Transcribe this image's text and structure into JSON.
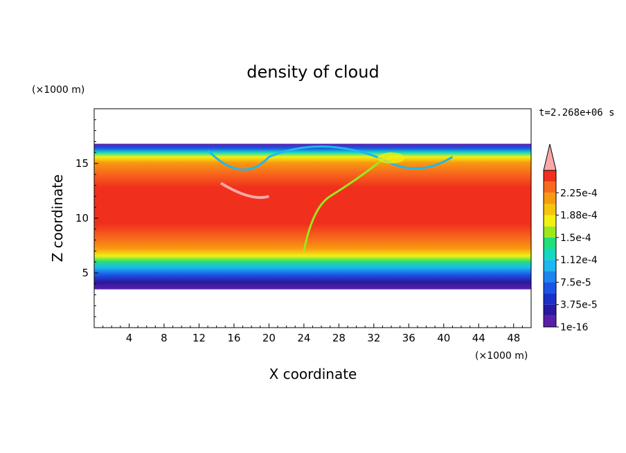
{
  "chart_data": {
    "type": "heatmap",
    "title": "density of cloud",
    "xlabel": "X coordinate",
    "ylabel": "Z coordinate",
    "x_unit": "(×1000 m)",
    "y_unit": "(×1000 m)",
    "time_label": "t=2.268e+06 s",
    "xlim": [
      0,
      50
    ],
    "ylim": [
      0,
      20
    ],
    "x_ticks": [
      4,
      8,
      12,
      16,
      20,
      24,
      28,
      32,
      36,
      40,
      44,
      48
    ],
    "y_ticks": [
      5,
      10,
      15
    ],
    "colorbar": {
      "levels": [
        {
          "value": 1e-16,
          "color": "#5a1fa8"
        },
        {
          "value": 1.875e-05,
          "color": "#2a18a0"
        },
        {
          "value": 3.75e-05,
          "color": "#1a30c8"
        },
        {
          "value": 5.625e-05,
          "color": "#1c55e6"
        },
        {
          "value": 7.5e-05,
          "color": "#1e84f0"
        },
        {
          "value": 9.375e-05,
          "color": "#1cb8f0"
        },
        {
          "value": 0.0001125,
          "color": "#14d8c0"
        },
        {
          "value": 0.00013125,
          "color": "#20e07a"
        },
        {
          "value": 0.00015,
          "color": "#9ce81c"
        },
        {
          "value": 0.00016875,
          "color": "#f2f010"
        },
        {
          "value": 0.0001875,
          "color": "#f7c40c"
        },
        {
          "value": 0.00020625,
          "color": "#f89a10"
        },
        {
          "value": 0.000225,
          "color": "#f86a1c"
        },
        {
          "value": 0.00024375,
          "color": "#f0301c"
        }
      ],
      "tick_labels": [
        "1e-16",
        "3.75e-5",
        "7.5e-5",
        "1.12e-4",
        "1.5e-4",
        "1.88e-4",
        "2.25e-4"
      ],
      "over_color": "#f8a8a8"
    },
    "cloud_base_km": 3.5,
    "cloud_top_km": 16.8
  }
}
